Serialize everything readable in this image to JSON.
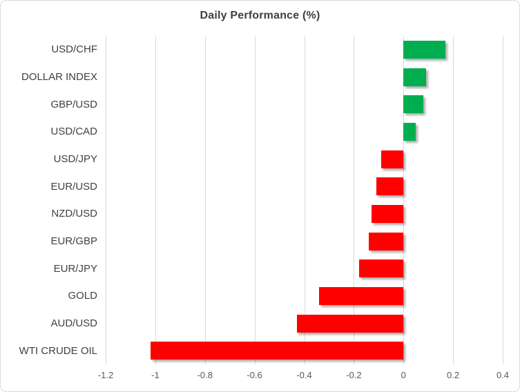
{
  "chart_data": {
    "type": "bar",
    "orientation": "horizontal",
    "title": "Daily Performance (%)",
    "categories": [
      "USD/CHF",
      "DOLLAR INDEX",
      "GBP/USD",
      "USD/CAD",
      "USD/JPY",
      "EUR/USD",
      "NZD/USD",
      "EUR/GBP",
      "EUR/JPY",
      "GOLD",
      "AUD/USD",
      "WTI CRUDE OIL"
    ],
    "values": [
      0.17,
      0.09,
      0.08,
      0.05,
      -0.09,
      -0.11,
      -0.13,
      -0.14,
      -0.18,
      -0.34,
      -0.43,
      -1.02
    ],
    "xlabel": "",
    "ylabel": "",
    "xlim": [
      -1.2,
      0.4
    ],
    "xticks": [
      -1.2,
      -1,
      -0.8,
      -0.6,
      -0.4,
      -0.2,
      0,
      0.2,
      0.4
    ],
    "xtick_labels": [
      "-1.2",
      "-1",
      "-0.8",
      "-0.6",
      "-0.4",
      "-0.2",
      "0",
      "0.2",
      "0.4"
    ],
    "grid": "vertical-gridlines-on",
    "legend": "none",
    "colors": {
      "positive_bar": "#00AE50",
      "negative_bar": "#FF0000",
      "gridline": "#d9d9d9",
      "title_text": "#3f3f3f",
      "category_text": "#404040",
      "tick_text": "#595959",
      "background": "#ffffff",
      "border": "#d9d9d9"
    }
  }
}
